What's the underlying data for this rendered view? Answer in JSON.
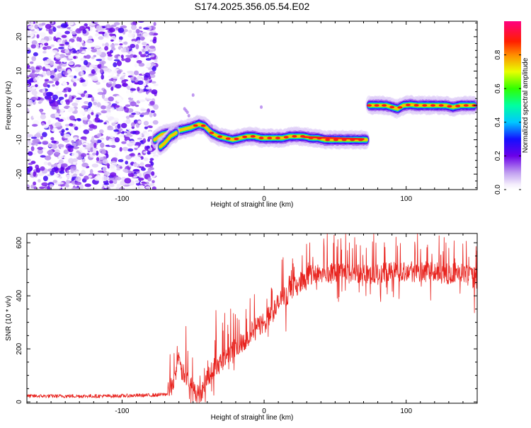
{
  "title": "S174.2025.356.05.54.E02",
  "colors": {
    "snr_line": "#e8231e",
    "axes": "#000000",
    "background": "#ffffff"
  },
  "chart_data": [
    {
      "type": "heatmap",
      "name": "spectrogram",
      "title": "S174.2025.356.05.54.E02",
      "xlabel": "Height of straight line (km)",
      "ylabel": "Frequency (Hz)",
      "xlim": [
        -167,
        150
      ],
      "ylim": [
        -24.5,
        24.5
      ],
      "xticks": [
        -100,
        0,
        100
      ],
      "xtick_labels": [
        "-100",
        "0",
        "100"
      ],
      "yticks": [
        -20,
        -10,
        0,
        10,
        20
      ],
      "ytick_labels": [
        "-20",
        "-10",
        "0",
        "10",
        "20"
      ],
      "noise_region_x": [
        -167,
        -76
      ],
      "ridge": [
        [
          -77,
          -10
        ],
        [
          -72,
          -8.5
        ],
        [
          -67,
          -8
        ],
        [
          -62,
          -7.5
        ],
        [
          -57,
          -7
        ],
        [
          -52,
          -6.5
        ],
        [
          -46,
          -5.5
        ],
        [
          -42,
          -6
        ],
        [
          -37,
          -8
        ],
        [
          -32,
          -9
        ],
        [
          -27,
          -9.5
        ],
        [
          -22,
          -10
        ],
        [
          -17,
          -9.5
        ],
        [
          -12,
          -9
        ],
        [
          -7,
          -9
        ],
        [
          -2,
          -9.5
        ],
        [
          3,
          -9.5
        ],
        [
          8,
          -9.5
        ],
        [
          13,
          -9.5
        ],
        [
          18,
          -9
        ],
        [
          23,
          -9
        ],
        [
          28,
          -9
        ],
        [
          33,
          -9.5
        ],
        [
          38,
          -9.5
        ],
        [
          43,
          -10
        ],
        [
          48,
          -10
        ],
        [
          53,
          -10
        ],
        [
          58,
          -10
        ],
        [
          63,
          -10
        ],
        [
          68,
          -10
        ],
        [
          72,
          -10
        ]
      ],
      "ridge_upper": [
        [
          -73,
          -12
        ],
        [
          -70,
          -11
        ],
        [
          -66,
          -9
        ],
        [
          -62,
          -8
        ]
      ],
      "ridge_after_jump": [
        [
          74,
          0
        ],
        [
          80,
          0
        ],
        [
          86,
          0
        ],
        [
          90,
          -0.5
        ],
        [
          94,
          -1
        ],
        [
          98,
          0
        ],
        [
          103,
          0.2
        ],
        [
          108,
          0
        ],
        [
          113,
          0
        ],
        [
          118,
          0
        ],
        [
          123,
          0
        ],
        [
          128,
          0
        ],
        [
          133,
          -0.5
        ],
        [
          138,
          0
        ],
        [
          143,
          0
        ],
        [
          148,
          0
        ]
      ],
      "colorbar": {
        "label": "Normalized spectral amplitude",
        "range": [
          0.0,
          1.0
        ],
        "ticks": [
          0.0,
          0.2,
          0.4,
          0.6,
          0.8
        ],
        "tick_labels": [
          "0.0",
          "0.2",
          "0.4",
          "0.6",
          "0.8"
        ],
        "stops": [
          {
            "value": 0.0,
            "color": "#ffffff"
          },
          {
            "value": 0.03,
            "color": "#f4eefc"
          },
          {
            "value": 0.1,
            "color": "#c19ff0"
          },
          {
            "value": 0.2,
            "color": "#6b00e8"
          },
          {
            "value": 0.3,
            "color": "#1410ff"
          },
          {
            "value": 0.4,
            "color": "#00c8ff"
          },
          {
            "value": 0.5,
            "color": "#00ffa0"
          },
          {
            "value": 0.6,
            "color": "#30ff00"
          },
          {
            "value": 0.7,
            "color": "#e8ff00"
          },
          {
            "value": 0.8,
            "color": "#ff8c00"
          },
          {
            "value": 0.88,
            "color": "#ff1e00"
          },
          {
            "value": 1.0,
            "color": "#ff0080"
          }
        ]
      }
    },
    {
      "type": "line",
      "name": "snr",
      "xlabel": "Height of straight line (km)",
      "ylabel": "SNR (10 * v/v)",
      "xlim": [
        -167,
        150
      ],
      "ylim": [
        -5,
        635
      ],
      "xticks": [
        -100,
        0,
        100
      ],
      "xtick_labels": [
        "-100",
        "0",
        "100"
      ],
      "yticks": [
        0,
        200,
        400,
        600
      ],
      "ytick_labels": [
        "0",
        "200",
        "400",
        "600"
      ],
      "series": [
        {
          "name": "SNR",
          "x": [
            -167,
            -150,
            -130,
            -110,
            -90,
            -75,
            -68,
            -65,
            -62,
            -60,
            -58,
            -55,
            -52,
            -50,
            -48,
            -46,
            -44,
            -42,
            -40,
            -36,
            -32,
            -28,
            -24,
            -20,
            -16,
            -12,
            -8,
            -4,
            0,
            4,
            8,
            12,
            16,
            20,
            24,
            28,
            32,
            36,
            40,
            45,
            50,
            55,
            60,
            65,
            70,
            75,
            80,
            85,
            90,
            95,
            100,
            105,
            110,
            115,
            120,
            125,
            130,
            135,
            140,
            145,
            150
          ],
          "y": [
            22,
            22,
            22,
            22,
            24,
            26,
            30,
            60,
            110,
            150,
            110,
            90,
            70,
            50,
            30,
            25,
            35,
            60,
            90,
            120,
            140,
            170,
            190,
            200,
            220,
            240,
            260,
            280,
            300,
            320,
            350,
            380,
            400,
            420,
            440,
            460,
            470,
            480,
            485,
            480,
            482,
            485,
            478,
            482,
            486,
            480,
            475,
            482,
            488,
            484,
            490,
            486,
            482,
            488,
            485,
            480,
            478,
            482,
            476,
            470,
            462
          ]
        }
      ],
      "noise_bands": [
        {
          "x": [
            -167,
            -68
          ],
          "amp": 10
        },
        {
          "x": [
            -68,
            -40
          ],
          "amp": 60
        },
        {
          "x": [
            -40,
            20
          ],
          "amp": 70
        },
        {
          "x": [
            20,
            150
          ],
          "amp": 65
        }
      ],
      "peaks": [
        [
          -55,
          285
        ],
        [
          -34,
          345
        ],
        [
          -10,
          390
        ],
        [
          5,
          430
        ],
        [
          20,
          540
        ],
        [
          32,
          600
        ],
        [
          42,
          615
        ],
        [
          52,
          612
        ],
        [
          60,
          600
        ],
        [
          72,
          580
        ],
        [
          96,
          598
        ],
        [
          106,
          603
        ],
        [
          108,
          634
        ],
        [
          128,
          600
        ],
        [
          140,
          596
        ],
        [
          86,
          432
        ],
        [
          138,
          409
        ],
        [
          148,
          336
        ]
      ]
    }
  ]
}
